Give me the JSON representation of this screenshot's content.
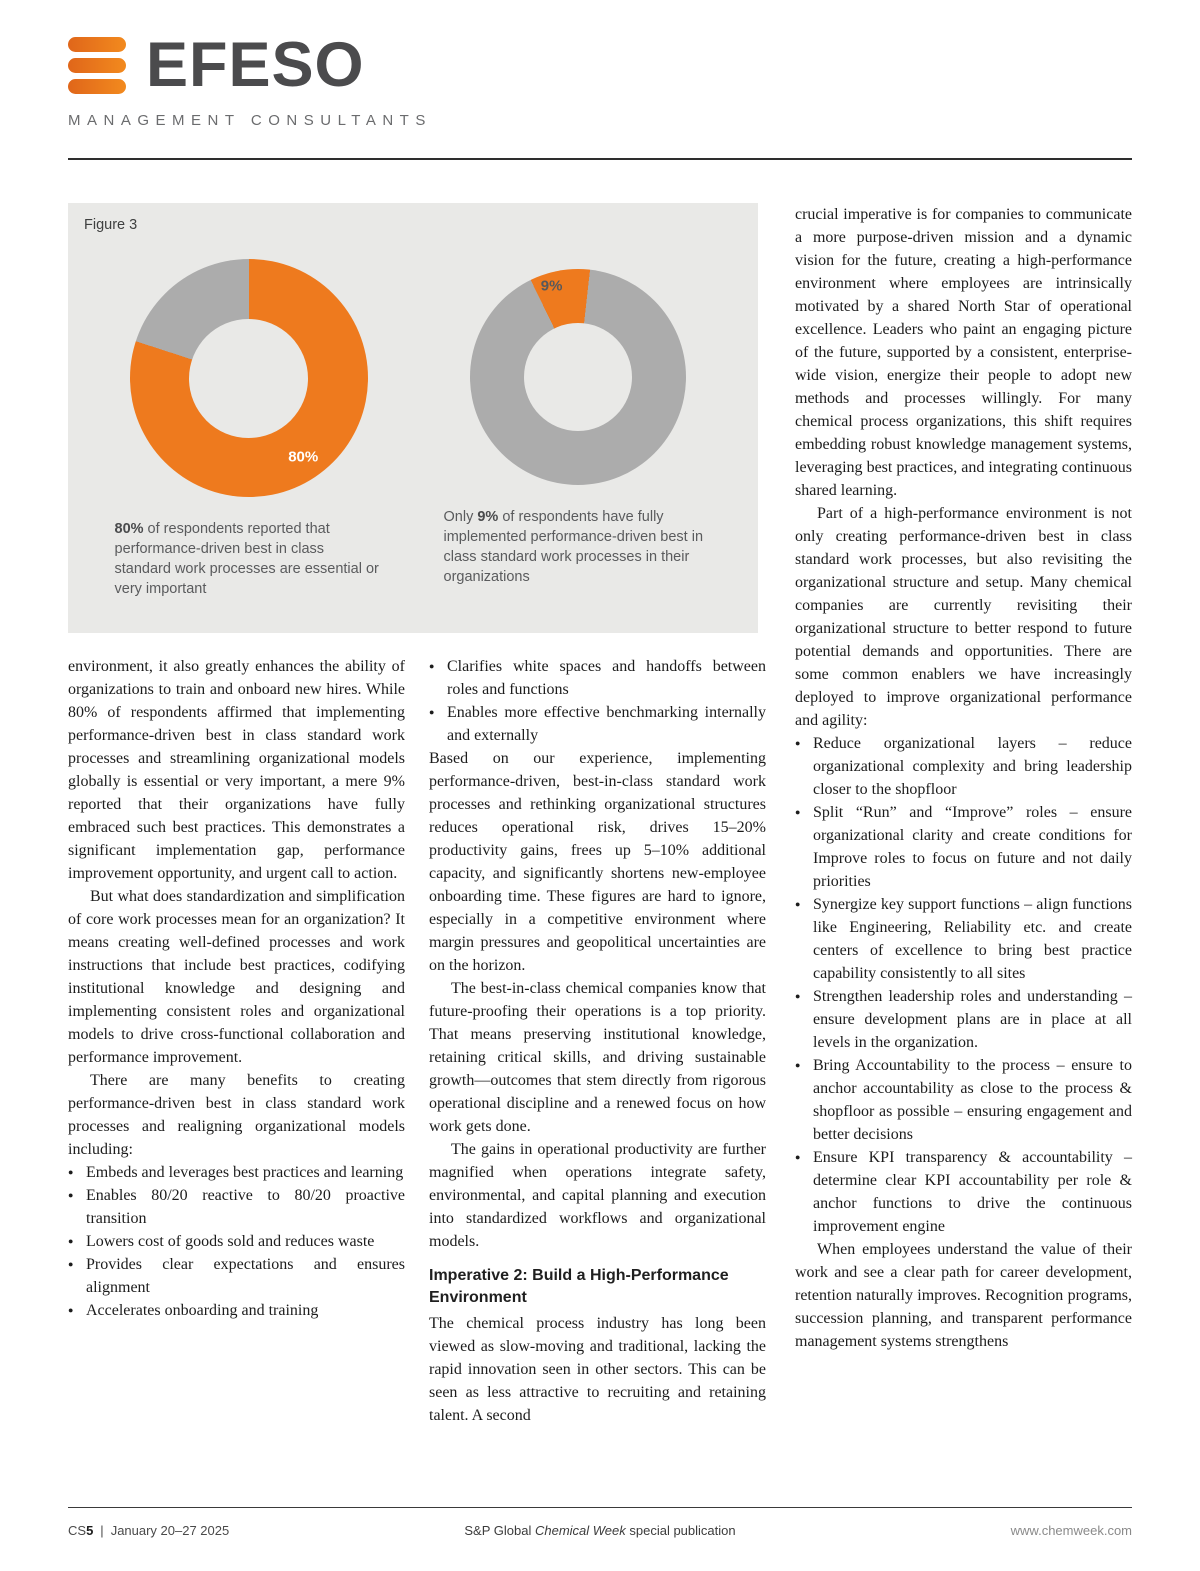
{
  "brand": {
    "wordmark": "EFESO",
    "subtitle": "MANAGEMENT CONSULTANTS",
    "orange": "#EE7623"
  },
  "figure": {
    "label": "Figure 3"
  },
  "chart_data": [
    {
      "type": "pie",
      "subtype": "donut",
      "value_pct": 80,
      "label": "80%",
      "slice_color": "#EE7A1E",
      "remainder_color": "#acacac",
      "start_angle_deg": 0,
      "caption_segments": [
        {
          "text": "80%",
          "bold": true
        },
        {
          "text": " of respondents reported that performance-driven best in class standard work processes are essential or very important",
          "bold": false
        }
      ]
    },
    {
      "type": "pie",
      "subtype": "donut",
      "value_pct": 9,
      "label": "9%",
      "slice_color": "#EE7A1E",
      "remainder_color": "#acacac",
      "start_angle_deg": -26,
      "caption_segments": [
        {
          "text": "Only ",
          "bold": false
        },
        {
          "text": "9%",
          "bold": true
        },
        {
          "text": " of respondents have fully implemented performance-driven best in class standard work processes in their organizations",
          "bold": false
        }
      ]
    }
  ],
  "columns": {
    "col1": [
      {
        "kind": "p",
        "indent": false,
        "text": "environment,  it also greatly enhances the ability of organizations to train and onboard new hires. While 80% of respondents affirmed that implementing performance-driven best in class standard work processes and streamlining organizational models globally is essential or very important, a mere 9% reported that their organizations have fully embraced such best practices. This demonstrates a significant implementation gap, performance improvement opportunity, and urgent call to action."
      },
      {
        "kind": "p",
        "indent": true,
        "text": "But what does standardization and simplification of core work processes mean for an organization? It means creating well-defined processes and work instructions that include best practices, codifying institutional knowledge and designing and implementing consistent roles and organizational models to drive cross-functional collaboration and performance improvement."
      },
      {
        "kind": "p",
        "indent": true,
        "text": "There are many benefits to creating performance-driven best in class standard work processes and realigning organizational models including:"
      },
      {
        "kind": "bullet",
        "text": "Embeds and leverages best practices and learning"
      },
      {
        "kind": "bullet",
        "text": "Enables 80/20 reactive to 80/20 proactive transition"
      },
      {
        "kind": "bullet",
        "text": "Lowers cost of goods sold and reduces waste"
      },
      {
        "kind": "bullet",
        "text": "Provides clear expectations and ensures alignment"
      },
      {
        "kind": "bullet",
        "text": "Accelerates onboarding and training"
      }
    ],
    "col2": [
      {
        "kind": "bullet",
        "text": "Clarifies white spaces and handoffs between roles and functions"
      },
      {
        "kind": "bullet",
        "text": "Enables more effective benchmarking internally and externally"
      },
      {
        "kind": "p",
        "indent": false,
        "text": "Based on our experience, implementing performance-driven, best-in-class standard work processes and rethinking organizational structures reduces operational risk, drives 15–20% productivity gains, frees up 5–10% additional capacity, and significantly shortens new-employee onboarding time. These figures are hard to ignore, especially in a competitive environment where margin pressures and geopolitical uncertainties are on the horizon."
      },
      {
        "kind": "p",
        "indent": true,
        "text": "The best-in-class chemical companies know that future-proofing their operations is a top priority. That means preserving institutional knowledge, retaining critical skills, and driving sustainable growth—outcomes that stem directly from rigorous operational discipline and a renewed focus on how work gets done."
      },
      {
        "kind": "p",
        "indent": true,
        "text": "The gains in operational productivity are further magnified when operations integrate safety, environmental, and capital planning and execution into standardized workflows and organizational models."
      },
      {
        "kind": "heading",
        "text": "Imperative 2: Build a High-Performance Environment"
      },
      {
        "kind": "p",
        "indent": false,
        "text": "The chemical process industry has long been viewed as slow-moving and traditional, lacking the rapid innovation seen in other sectors. This can be seen as less attractive to recruiting and retaining talent.  A second"
      }
    ],
    "col3": [
      {
        "kind": "p",
        "indent": false,
        "text": "crucial imperative is for companies to communicate a more purpose-driven mission and a dynamic vision for the future, creating a high-performance environment where employees are intrinsically motivated by a shared North Star of operational excellence. Leaders who paint an engaging picture of the future, supported by a consistent, enterprise-wide vision, energize their people to adopt new methods and processes willingly. For many chemical process organizations, this shift requires embedding robust knowledge management systems, leveraging best practices, and integrating continuous shared learning."
      },
      {
        "kind": "p",
        "indent": true,
        "text": "Part of a high-performance environment is not only creating performance-driven best in class standard work processes, but also revisiting the organizational structure and setup. Many chemical companies are currently revisiting their organizational structure to better respond to future potential demands and opportunities. There are some common enablers we have increasingly deployed to improve organizational performance and agility:"
      },
      {
        "kind": "bullet",
        "text": "Reduce organizational layers – reduce organizational complexity and bring leadership closer to the shopfloor"
      },
      {
        "kind": "bullet",
        "text": "Split “Run” and “Improve” roles – ensure organizational clarity and create conditions for Improve roles to focus on future and not daily priorities"
      },
      {
        "kind": "bullet",
        "text": "Synergize key support functions – align functions like Engineering, Reliability etc. and create centers of excellence to bring best practice capability consistently to all sites"
      },
      {
        "kind": "bullet",
        "text": "Strengthen leadership roles and understanding – ensure development plans are in place at all levels in the organization."
      },
      {
        "kind": "bullet",
        "text": "Bring Accountability to the process – ensure to anchor accountability as close to the process & shopfloor as possible – ensuring engagement and better decisions"
      },
      {
        "kind": "bullet",
        "text": "Ensure KPI transparency & accountability – determine clear KPI accountability per role & anchor functions to drive the continuous improvement engine"
      },
      {
        "kind": "p",
        "indent": true,
        "text": "When employees understand the value of their work and see a clear path for career development, retention naturally improves. Recognition programs, succession planning, and transparent performance management systems strengthens"
      }
    ]
  },
  "footer": {
    "page_prefix": "CS",
    "page_num": "5",
    "separator": "|",
    "date": "January 20–27 2025",
    "center_pre": "S&P Global ",
    "center_italic": "Chemical Week",
    "center_post": " special publication",
    "url": "www.chemweek.com"
  }
}
